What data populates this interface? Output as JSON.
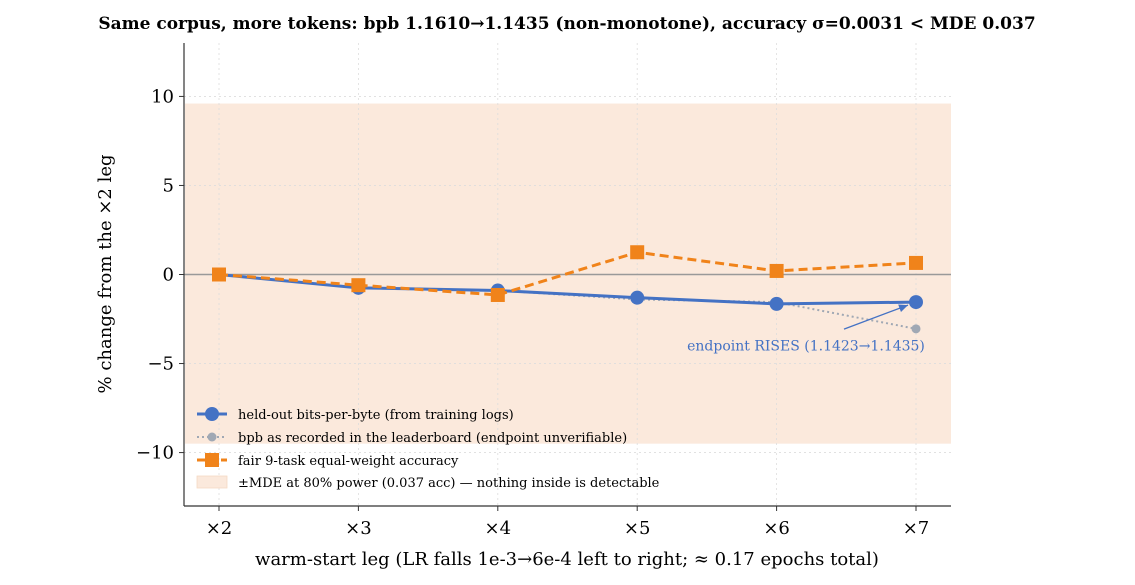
{
  "chart_data": {
    "type": "line",
    "title": "Same corpus, more tokens: bpb 1.1610→1.1435 (non-monotone), accuracy σ=0.0031 < MDE 0.037",
    "xlabel": "warm-start leg (LR falls 1e-3→6e-4 left to right; ≈ 0.17 epochs total)",
    "ylabel": "% change from the ×2 leg",
    "categories": [
      "×2",
      "×3",
      "×4",
      "×5",
      "×6",
      "×7"
    ],
    "ylim": [
      -13,
      13
    ],
    "yticks": [
      -10,
      -5,
      0,
      5,
      10
    ],
    "ytick_labels": [
      "−10",
      "−5",
      "0",
      "5",
      "10"
    ],
    "grid": true,
    "legend_position": "lower-left",
    "band": {
      "label": "±MDE at 80% power (0.037 acc) — nothing inside is detectable",
      "low": -9.5,
      "high": 9.6,
      "color": "#fbe9dc"
    },
    "series": [
      {
        "name": "held-out bits-per-byte (from training logs)",
        "values": [
          0,
          -0.75,
          -0.9,
          -1.3,
          -1.65,
          -1.55
        ],
        "color": "#4472c4",
        "style": "solid",
        "marker": "circle"
      },
      {
        "name": "bpb as recorded in the leaderboard (endpoint unverifiable)",
        "values": [
          0,
          -0.75,
          -0.9,
          -1.4,
          -1.55,
          -3.05
        ],
        "color": "#a0a8b4",
        "style": "dotted",
        "marker": "small-circle"
      },
      {
        "name": "fair 9-task equal-weight accuracy",
        "values": [
          0,
          -0.6,
          -1.15,
          1.25,
          0.2,
          0.65
        ],
        "color": "#f0831a",
        "style": "dashed",
        "marker": "square"
      }
    ],
    "annotations": [
      {
        "text": "endpoint RISES (1.1423→1.1435)",
        "color": "#4472c4"
      }
    ]
  }
}
